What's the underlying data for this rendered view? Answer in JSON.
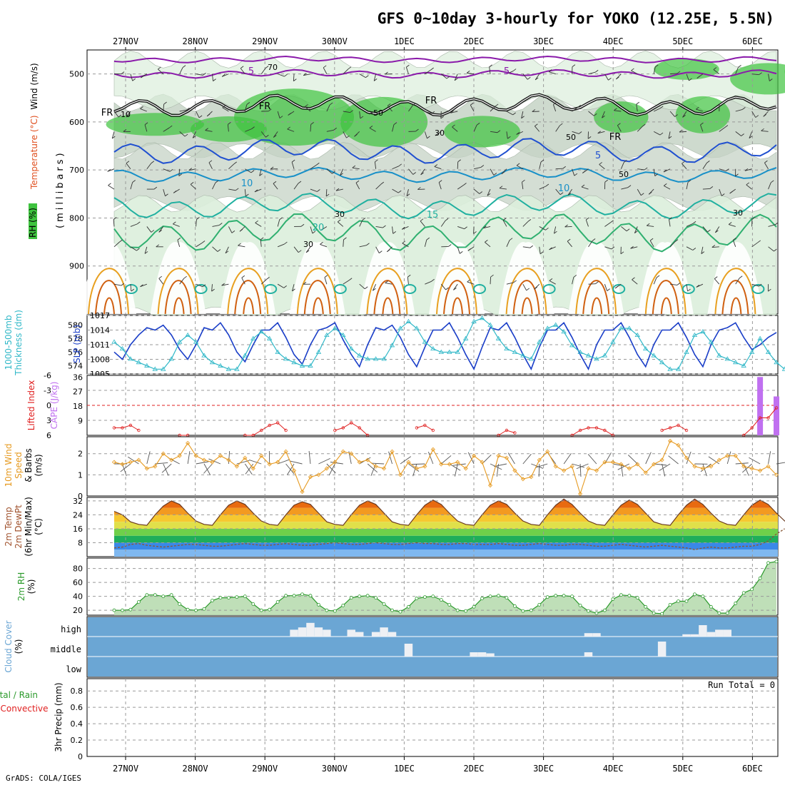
{
  "title": "GFS 0~10day 3-hourly for YOKO (12.25E, 5.5N)",
  "footer": "GrADS: COLA/IGES",
  "dates": [
    "27NOV",
    "28NOV",
    "29NOV",
    "30NOV",
    "1DEC",
    "2DEC",
    "3DEC",
    "4DEC",
    "5DEC",
    "6DEC"
  ],
  "colors": {
    "rh_green": "#3ec33e",
    "rh_light": "#dceedc",
    "rh_gray": "#c5d3c5",
    "t_purple": "#8a1aaa",
    "t_blue": "#2050d0",
    "t_lightblue": "#1890c8",
    "t_teal": "#20b0a0",
    "t_green": "#30b070",
    "t_orange": "#e8a020",
    "t_darkorange": "#d06010",
    "t_magenta": "#c0108a",
    "slp": "#1a3ec8",
    "thick": "#30b8c8",
    "cape": "#c070f0",
    "li": "#e02020",
    "wind": "#e69a20",
    "cloud": "#6ba6d4",
    "rh2m": "#2c9a2c"
  },
  "chart_data": [
    {
      "type": "heatmap",
      "ylabels": [
        "Temperature (°C)",
        "Wind (m/s)",
        "(millibars)",
        "RH (%)"
      ],
      "yticks": [
        500,
        600,
        700,
        800,
        900
      ],
      "ylim": [
        1000,
        450
      ],
      "temperature_contour_labels": [
        "5",
        "5",
        "10",
        "10",
        "15",
        "20",
        "5",
        "FR",
        "FR",
        "FR",
        "FR"
      ],
      "rh_contour_labels": [
        "70",
        "10",
        "50",
        "30",
        "50",
        "30",
        "50",
        "30",
        "30"
      ]
    },
    {
      "type": "line",
      "ylabels_left": [
        "1000-500mb",
        "Thickness (dm)"
      ],
      "ylabel_right": "SLP (mb)",
      "yticks_left": [
        574,
        576,
        578,
        580
      ],
      "yticks_right": [
        1005,
        1008,
        1011,
        1014,
        1017
      ],
      "ylim_left": [
        572.8,
        581.4
      ],
      "ylim_right": [
        1005,
        1017
      ],
      "series": [
        {
          "name": "SLP (mb)",
          "axis": "right",
          "values": [
            1009.5,
            1008,
            1011,
            1013,
            1014.5,
            1014,
            1015,
            1013,
            1010,
            1008,
            1011,
            1014.5,
            1014,
            1015.5,
            1013,
            1009.5,
            1007.5,
            1011,
            1014,
            1014,
            1015.5,
            1012.5,
            1009,
            1007,
            1011,
            1014,
            1014.5,
            1015.5,
            1012,
            1009,
            1006.5,
            1011,
            1014.5,
            1014,
            1015,
            1012.5,
            1009,
            1006.5,
            1010.5,
            1014,
            1014,
            1015.5,
            1012.5,
            1009,
            1006,
            1010.5,
            1014.5,
            1014,
            1015.5,
            1012.5,
            1009,
            1006,
            1010.5,
            1014,
            1014,
            1015.5,
            1012.5,
            1009,
            1006,
            1011,
            1014,
            1014,
            1015.5,
            1012.5,
            1009,
            1006.5,
            1011,
            1014,
            1014,
            1015.5,
            1012.5,
            1009,
            1006.5,
            1011,
            1014,
            1014.5,
            1015.5,
            1012.5,
            1010,
            1011,
            1012.5,
            1013.5
          ]
        },
        {
          "name": "1000-500mb Thickness (dm)",
          "axis": "left",
          "values": [
            577.5,
            576.5,
            575,
            574.5,
            574,
            573.5,
            573.5,
            575,
            577.5,
            578.5,
            577.5,
            575.5,
            574.5,
            574,
            573.5,
            573.5,
            575.5,
            578,
            579,
            578,
            576,
            575,
            574.5,
            574,
            574,
            576,
            578.5,
            579.5,
            578.5,
            576.5,
            575.5,
            575,
            575,
            575,
            577,
            579.5,
            580.5,
            579.5,
            577.5,
            576.5,
            576,
            576,
            576,
            578,
            580.5,
            581,
            580,
            578,
            576.5,
            576,
            575.5,
            575,
            577.5,
            579.5,
            580,
            579,
            577,
            576,
            575.5,
            575,
            575.5,
            577.5,
            579.5,
            579.5,
            578.5,
            576.5,
            575.5,
            574.5,
            573.5,
            573.5,
            576,
            578.5,
            579,
            577.5,
            575.5,
            575,
            574.5,
            574,
            576,
            578,
            576,
            574.5,
            573.5
          ]
        }
      ]
    },
    {
      "type": "bar",
      "ylabels_left": [
        "Lifted Index"
      ],
      "ylabel_right": "CAPE (J/kg)",
      "yticks_left": [
        -6,
        -3,
        0,
        3,
        6
      ],
      "yticks_right": [
        9,
        18,
        27,
        36
      ],
      "ylim_left": [
        -6,
        6
      ],
      "ylim_right": [
        0,
        37
      ],
      "cape_bars": [
        {
          "index": 79,
          "value": 36
        },
        {
          "index": 81,
          "value": 24
        }
      ],
      "lifted_index_values": [
        4.5,
        4.5,
        4,
        5,
        null,
        null,
        null,
        null,
        6,
        6,
        null,
        null,
        null,
        null,
        null,
        null,
        6,
        6,
        5,
        4,
        3.5,
        5,
        null,
        null,
        null,
        null,
        null,
        5,
        4.5,
        3.5,
        4.5,
        6,
        null,
        null,
        null,
        null,
        null,
        4.5,
        4,
        5,
        null,
        null,
        null,
        null,
        null,
        null,
        null,
        6,
        5,
        5.5,
        null,
        null,
        null,
        null,
        null,
        null,
        6,
        5,
        4.5,
        4.5,
        5,
        6,
        null,
        null,
        null,
        null,
        null,
        5,
        4.5,
        4,
        5,
        null,
        null,
        null,
        null,
        null,
        null,
        6,
        4.5,
        2.5,
        2.5,
        0.5
      ]
    },
    {
      "type": "line",
      "ylabels": [
        "10m Wind",
        "Speed",
        "& Barbs",
        "(m/s)"
      ],
      "yticks": [
        0,
        1,
        2
      ],
      "ylim": [
        0,
        2.8
      ],
      "series": [
        {
          "name": "10m Wind Speed",
          "values": [
            1.6,
            1.5,
            1.6,
            1.7,
            1.3,
            1.4,
            2.0,
            1.7,
            1.9,
            2.5,
            1.9,
            1.7,
            1.6,
            1.9,
            1.7,
            1.4,
            1.8,
            1.3,
            1.9,
            1.5,
            1.6,
            2.1,
            1.2,
            0.2,
            0.9,
            1.0,
            1.3,
            1.6,
            2.1,
            2.0,
            1.6,
            1.7,
            1.4,
            1.3,
            2.1,
            1.0,
            1.6,
            1.3,
            1.4,
            2.2,
            1.5,
            1.5,
            1.6,
            1.3,
            1.9,
            1.6,
            0.5,
            1.9,
            1.8,
            1.2,
            0.8,
            0.9,
            1.7,
            2.1,
            1.4,
            1.2,
            1.4,
            0.1,
            1.3,
            1.2,
            1.6,
            1.6,
            1.5,
            1.3,
            1.5,
            1.1,
            1.5,
            1.7,
            2.6,
            2.4,
            1.8,
            1.4,
            1.3,
            1.4,
            1.7,
            1.9,
            1.9,
            1.4,
            1.3,
            1.2,
            1.4,
            1.0
          ]
        }
      ]
    },
    {
      "type": "area",
      "ylabels": [
        "2m Temp",
        "2m DewPt",
        "(6hr Min/Max)",
        "(°C)"
      ],
      "yticks": [
        8,
        16,
        24,
        32
      ],
      "ylim": [
        0,
        34
      ],
      "series": [
        {
          "name": "2m Temp",
          "values": [
            26,
            24,
            20,
            18.5,
            18,
            24,
            29,
            32,
            30,
            25,
            20.5,
            18.5,
            18,
            24,
            29.5,
            32,
            30,
            25,
            20.5,
            18.5,
            18,
            24,
            29.5,
            31.5,
            30,
            25,
            20,
            18.5,
            18,
            24,
            29.5,
            32,
            30,
            25,
            20,
            18.5,
            18,
            24,
            29.5,
            32.5,
            30,
            25,
            20.5,
            18.5,
            18,
            24,
            29.5,
            32,
            30,
            25,
            20.5,
            18.5,
            18,
            24,
            29.5,
            33,
            30,
            25,
            20.5,
            18.5,
            18,
            24,
            29.5,
            32.5,
            30,
            25,
            20,
            18.5,
            18,
            24,
            29.5,
            33,
            30,
            25,
            20.5,
            18.5,
            18,
            24,
            29.5,
            32.5,
            30,
            25,
            20.5,
            18.5,
            17.5,
            16
          ]
        },
        {
          "name": "2m DewPt",
          "values": [
            5,
            5.5,
            7,
            7.5,
            6.5,
            6,
            5.5,
            6,
            6.5,
            7,
            7,
            6.5,
            6,
            6,
            6.5,
            7,
            7.5,
            7,
            6.5,
            6.5,
            7,
            7.5,
            7,
            6.5,
            6.5,
            7,
            7.5,
            8,
            7.5,
            7,
            7,
            7.5,
            8,
            7.5,
            7,
            7,
            7.5,
            8,
            7.5,
            7.5,
            7,
            7,
            7.5,
            7.5,
            7,
            7,
            7,
            7.5,
            7,
            6.5,
            6.5,
            7,
            7.5,
            7,
            6.5,
            6.5,
            7,
            7,
            6.5,
            6,
            6,
            6.5,
            7,
            6.5,
            6,
            5.5,
            6,
            6.5,
            6,
            5.5,
            5,
            4,
            5,
            5.5,
            5,
            5,
            5.5,
            6,
            6,
            7,
            9,
            13,
            16
          ]
        }
      ]
    },
    {
      "type": "area",
      "ylabels": [
        "2m RH",
        "(%)"
      ],
      "yticks": [
        20,
        40,
        60,
        80
      ],
      "ylim": [
        13,
        95
      ],
      "series": [
        {
          "name": "2m RH",
          "values": [
            20,
            20,
            21,
            32,
            42,
            42,
            40,
            42,
            29,
            21,
            20,
            22,
            34,
            38,
            38,
            39,
            40,
            29,
            20,
            21,
            32,
            41,
            41,
            43,
            41,
            28,
            20,
            19,
            27,
            38,
            40,
            41,
            38,
            29,
            20,
            18,
            25,
            37,
            39,
            40,
            35,
            28,
            20,
            19,
            25,
            37,
            40,
            41,
            38,
            26,
            19,
            20,
            28,
            39,
            41,
            41,
            40,
            27,
            19,
            16,
            20,
            36,
            42,
            41,
            38,
            25,
            16,
            15,
            28,
            33,
            33,
            43,
            40,
            25,
            16,
            16,
            30,
            45,
            50,
            66,
            88,
            90
          ]
        }
      ]
    },
    {
      "type": "bar",
      "ylabels": [
        "Cloud Cover",
        "(%)"
      ],
      "yticks": [
        "high",
        "middle",
        "low"
      ]
    },
    {
      "type": "bar",
      "ylabels": [
        "Total / Rain",
        "Convective",
        "3hr Precip (mm)"
      ],
      "yticks": [
        0,
        0.2,
        0.4,
        0.6,
        0.8
      ],
      "ylim": [
        0,
        0.95
      ],
      "annotation": "Run Total = 0",
      "values": []
    }
  ]
}
